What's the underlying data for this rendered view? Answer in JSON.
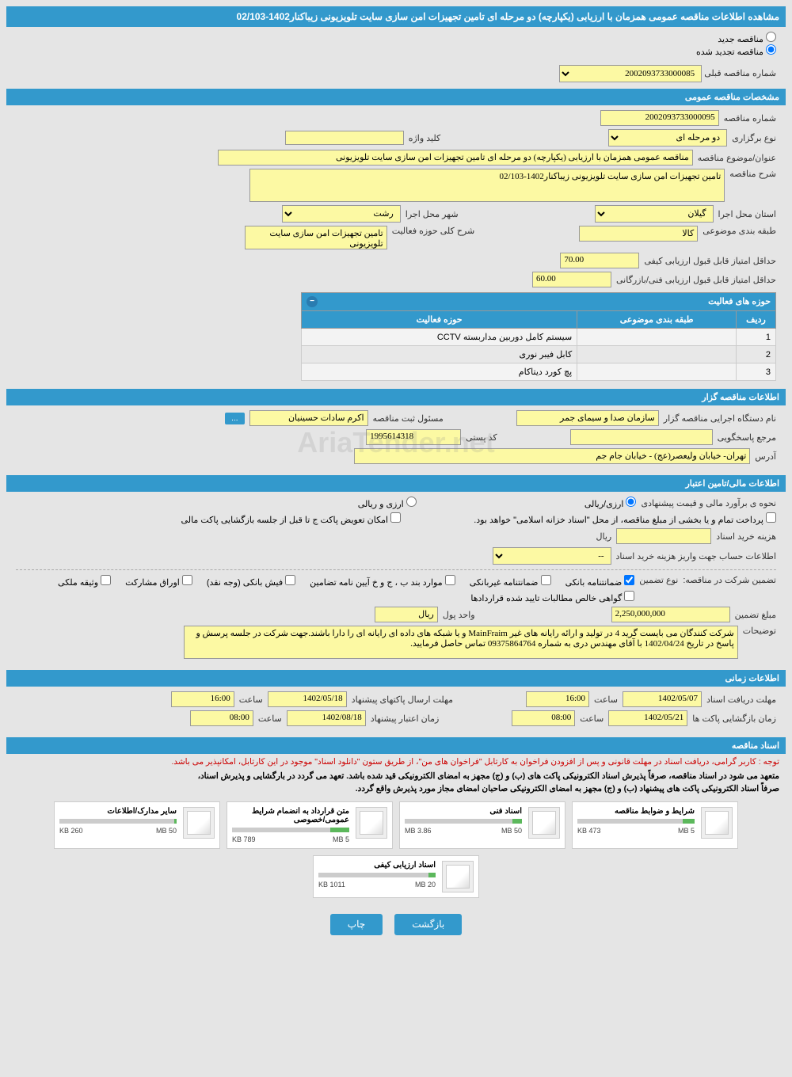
{
  "page_title": "مشاهده اطلاعات مناقصه عمومی همزمان با ارزیابی (یکپارچه) دو مرحله ای تامین تجهیزات امن سازی سایت تلویزیونی زیباکنار1402-02/103",
  "radios": {
    "new_label": "مناقصه جدید",
    "renew_label": "مناقصه تجدید شده",
    "selected": "renew"
  },
  "prev_number": {
    "label": "شماره مناقصه قبلی",
    "value": "2002093733000085"
  },
  "sections": {
    "general": "مشخصات مناقصه عمومی",
    "organizer": "اطلاعات مناقصه گزار",
    "financial": "اطلاعات مالی/تامین اعتبار",
    "timing": "اطلاعات زمانی",
    "documents": "اسناد مناقصه"
  },
  "general": {
    "tender_number": {
      "label": "شماره مناقصه",
      "value": "2002093733000095"
    },
    "holding_type": {
      "label": "نوع برگزاری",
      "value": "دو مرحله ای"
    },
    "keyword": {
      "label": "کلید واژه",
      "value": ""
    },
    "subject": {
      "label": "عنوان/موضوع مناقصه",
      "value": "مناقصه عمومی همزمان با ارزیابی (یکپارچه) دو مرحله ای تامین تجهیزات امن سازی سایت تلویزیونی"
    },
    "description": {
      "label": "شرح مناقصه",
      "value": "تامین تجهیزات امن سازی سایت تلویزیونی زیباکنار1402-02/103"
    },
    "province": {
      "label": "استان محل اجرا",
      "value": "گیلان"
    },
    "city": {
      "label": "شهر محل اجرا",
      "value": "رشت"
    },
    "category": {
      "label": "طبقه بندی موضوعی",
      "value": "کالا"
    },
    "activity_desc": {
      "label": "شرح کلی حوزه فعالیت",
      "value": "تامین تجهیزات امن سازی سایت تلویزیونی"
    },
    "min_quality_score": {
      "label": "حداقل امتیاز قابل قبول ارزیابی کیفی",
      "value": "70.00"
    },
    "min_tech_score": {
      "label": "حداقل امتیاز قابل قبول ارزیابی فنی/بازرگانی",
      "value": "60.00"
    }
  },
  "activity_table": {
    "title": "حوزه های فعالیت",
    "columns": [
      "ردیف",
      "طبقه بندی موضوعی",
      "حوزه فعالیت"
    ],
    "rows": [
      [
        "1",
        "",
        "سیستم کامل دوربین مداربسته CCTV"
      ],
      [
        "2",
        "",
        "کابل فیبر نوری"
      ],
      [
        "3",
        "",
        "پچ کورد دیتاکام"
      ]
    ]
  },
  "organizer": {
    "org_name": {
      "label": "نام دستگاه اجرایی مناقصه گزار",
      "value": "سازمان صدا و سیمای جمر"
    },
    "registrar": {
      "label": "مسئول ثبت مناقصه",
      "value": "اکرم سادات حسینیان"
    },
    "responder": {
      "label": "مرجع پاسخگویی",
      "value": ""
    },
    "postal_code": {
      "label": "کد پستی",
      "value": "1995614318"
    },
    "address": {
      "label": "آدرس",
      "value": "تهران- خیابان ولیعصر(عج) - خیابان جام جم"
    },
    "more_btn": "..."
  },
  "financial": {
    "estimate_method": {
      "label": "نحوه ی برآورد مالی و قیمت پیشنهادی",
      "opt1": "ارزی/ریالی",
      "opt2": "ارزی و ریالی",
      "selected": "opt1"
    },
    "payment_note": "پرداخت تمام و یا بخشی از مبلغ مناقصه، از محل \"اسناد خزانه اسلامی\" خواهد بود.",
    "doc_fee": {
      "label": "هزینه خرید اسناد",
      "value": "",
      "currency": "ریال"
    },
    "account_info": {
      "label": "اطلاعات حساب جهت واریز هزینه خرید اسناد",
      "value": "--"
    },
    "remit_option": "امکان تعویض پاکت ج تا قبل از جلسه بازگشایی پاکت مالی",
    "guarantee": {
      "label": "تضمین شرکت در مناقصه:",
      "type_label": "نوع تضمین",
      "checks": [
        {
          "label": "ضمانتنامه بانکی",
          "checked": true
        },
        {
          "label": "ضمانتنامه غیربانکی",
          "checked": false
        },
        {
          "label": "موارد بند ب ، ج و خ آیین نامه تضامین",
          "checked": false
        },
        {
          "label": "فیش بانکی (وجه نقد)",
          "checked": false
        },
        {
          "label": "اوراق مشارکت",
          "checked": false
        },
        {
          "label": "وثیقه ملکی",
          "checked": false
        },
        {
          "label": "گواهی خالص مطالبات تایید شده قراردادها",
          "checked": false
        }
      ]
    },
    "guarantee_amount": {
      "label": "مبلغ تضمین",
      "value": "2,250,000,000"
    },
    "currency_unit": {
      "label": "واحد پول",
      "value": "ریال"
    },
    "notes": {
      "label": "توضیحات",
      "value": "شرکت کنندگان می بایست گرید 4 در تولید و ارائه رایانه های غیر MainFraim و یا شبکه های داده ای رایانه ای را دارا باشند.جهت شرکت در جلسه پرسش و پاسخ در تاریخ 1402/04/24 با آقای مهندس دری به شماره 09375864764 تماس حاصل فرمایید."
    }
  },
  "timing": {
    "doc_receive": {
      "label": "مهلت دریافت اسناد",
      "date": "1402/05/07",
      "time_label": "ساعت",
      "time": "16:00"
    },
    "send_packets": {
      "label": "مهلت ارسال پاکتهای پیشنهاد",
      "date": "1402/05/18",
      "time_label": "ساعت",
      "time": "16:00"
    },
    "open_packets": {
      "label": "زمان بازگشایی پاکت ها",
      "date": "1402/05/21",
      "time_label": "ساعت",
      "time": "08:00"
    },
    "validity": {
      "label": "زمان اعتبار پیشنهاد",
      "date": "1402/08/18",
      "time_label": "ساعت",
      "time": "08:00"
    }
  },
  "documents": {
    "red_note": "توجه : کاربر گرامی، دریافت اسناد در مهلت قانونی و پس از افزودن فراخوان به کارتابل \"فراخوان های من\"، از طریق ستون \"دانلود اسناد\" موجود در این کارتابل، امکانپذیر می باشد.",
    "bold_note1": "متعهد می شود در اسناد مناقصه، صرفاً پذیرش اسناد الکترونیکی پاکت های (ب) و (ج) مجهز به امضای الکترونیکی قید شده باشد. تعهد می گردد در بارگشایی و پذیرش اسناد،",
    "bold_note2": "صرفاً اسناد الکترونیکی پاکت های پیشنهاد (ب) و (ج) مجهز به امضای الکترونیکی صاحبان امضای مجاز مورد پذیرش واقع گردد.",
    "files": [
      {
        "title": "شرایط و ضوابط مناقصه",
        "size": "473 KB",
        "max": "5 MB",
        "pct": 10
      },
      {
        "title": "اسناد فنی",
        "size": "3.86 MB",
        "max": "50 MB",
        "pct": 8
      },
      {
        "title": "متن قرارداد به انضمام شرایط عمومی/خصوصی",
        "size": "789 KB",
        "max": "5 MB",
        "pct": 16
      },
      {
        "title": "سایر مدارک/اطلاعات",
        "size": "260 KB",
        "max": "50 MB",
        "pct": 2
      },
      {
        "title": "اسناد ارزیابی کیفی",
        "size": "1011 KB",
        "max": "20 MB",
        "pct": 6
      }
    ]
  },
  "buttons": {
    "back": "بازگشت",
    "print": "چاپ"
  },
  "watermark": "AriaTender.net",
  "colors": {
    "header_bg": "#3399cc",
    "field_bg": "#fcf9a3",
    "page_bg": "#e5e5e5",
    "red": "#cc0000",
    "progress": "#5cb85c"
  }
}
